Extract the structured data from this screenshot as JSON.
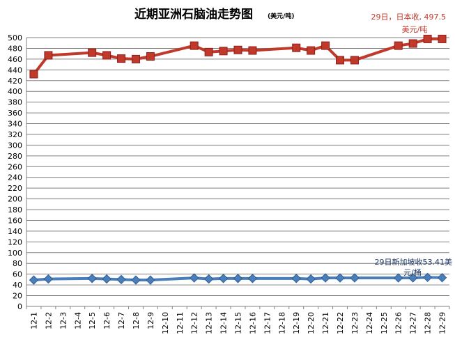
{
  "chart_data": {
    "type": "line",
    "title": "近期亚洲石脑油走势图",
    "title_unit": "(美元/吨)",
    "categories": [
      "12-1",
      "12-2",
      "12-3",
      "12-4",
      "12-5",
      "12-6",
      "12-7",
      "12-8",
      "12-9",
      "12-10",
      "12-11",
      "12-12",
      "12-13",
      "12-14",
      "12-15",
      "12-16",
      "12-17",
      "12-18",
      "12-19",
      "12-20",
      "12-21",
      "12-22",
      "12-23",
      "12-24",
      "12-25",
      "12-26",
      "12-27",
      "12-28",
      "12-29"
    ],
    "ylim": [
      0,
      500
    ],
    "ytick_step": 20,
    "grid": true,
    "legend": "none",
    "series": [
      {
        "color": "#c0392b",
        "marker": "square",
        "values": [
          432,
          467,
          null,
          null,
          472,
          467,
          461,
          460,
          465,
          null,
          null,
          485,
          473,
          475,
          477,
          476,
          null,
          null,
          481,
          476,
          485,
          458,
          458,
          null,
          null,
          485,
          489,
          497.5,
          497.5
        ]
      },
      {
        "color": "#4a7ebb",
        "marker": "diamond",
        "values": [
          49,
          51,
          null,
          null,
          52,
          51,
          50,
          49,
          49,
          null,
          null,
          53,
          51,
          52,
          52,
          52,
          null,
          null,
          52,
          51,
          53,
          53,
          53,
          null,
          null,
          53,
          53,
          54,
          53.41
        ]
      }
    ],
    "annotations": [
      {
        "lines": [
          "29日，日本收, 497.5",
          "美元/吨"
        ],
        "color": "#c0392b"
      },
      {
        "lines": [
          "29日新加坡收53.41美",
          "元/桶"
        ],
        "color": "#1f3864"
      }
    ]
  }
}
